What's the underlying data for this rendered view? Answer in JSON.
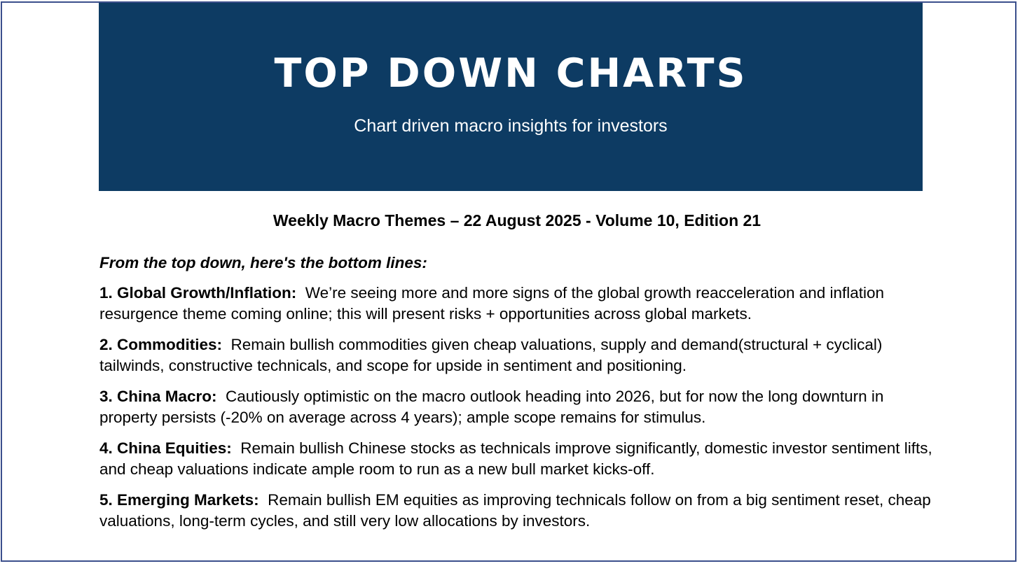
{
  "banner": {
    "title": "TOP DOWN CHARTS",
    "subtitle": "Chart driven macro insights for investors",
    "color": "#0d3b63"
  },
  "edition": {
    "text": "Weekly Macro Themes – 22 August 2025 - Volume 10, Edition 21"
  },
  "intro": {
    "text": "From the top down, here's the bottom lines:"
  },
  "points": [
    {
      "heading": "1. Global Growth/Inflation:",
      "text": "We’re seeing more and more signs of the global growth reacceleration and inflation resurgence theme coming online; this will present risks + opportunities across global markets."
    },
    {
      "heading": "2. Commodities:",
      "text": "Remain bullish commodities given cheap valuations, supply and demand(structural + cyclical) tailwinds, constructive technicals, and scope for upside in sentiment and positioning."
    },
    {
      "heading": "3. China Macro:",
      "text": "Cautiously optimistic on the macro outlook heading into 2026, but for now the long downturn in property persists (-20% on average across 4 years); ample scope remains for stimulus."
    },
    {
      "heading": "4. China Equities:",
      "text": "Remain bullish Chinese stocks as technicals improve significantly, domestic investor sentiment lifts, and cheap valuations indicate ample room to run as a new bull market kicks-off."
    },
    {
      "heading": "5. Emerging Markets:",
      "text": "Remain bullish EM equities as improving technicals follow on from a big sentiment reset, cheap valuations, long-term cycles, and still very low allocations by investors."
    }
  ]
}
